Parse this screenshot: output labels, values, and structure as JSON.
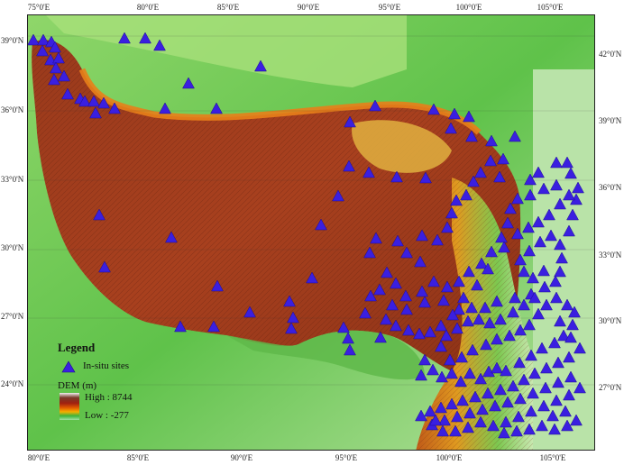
{
  "map": {
    "longitude_ticks": [
      "75°0'E",
      "80°0'E",
      "85°0'E",
      "90°0'E",
      "95°0'E",
      "100°0'E",
      "105°0'E"
    ],
    "left_latitude_ticks": [
      "39°0'N",
      "36°0'N",
      "33°0'N",
      "30°0'N",
      "27°0'N",
      "24°0'N"
    ],
    "right_latitude_ticks": [
      "42°0'N",
      "39°0'N",
      "36°0'N",
      "33°0'N",
      "30°0'N",
      "27°0'N"
    ],
    "bottom_longitude_ticks": [
      "80°0'E",
      "85°0'E",
      "90°0'E",
      "95°0'E",
      "100°0'E",
      "105°0'E"
    ],
    "site_color": "#3a1fe0"
  },
  "legend": {
    "title": "Legend",
    "site_label": "In-situ sites",
    "dem_title": "DEM (m)",
    "high_label": "High : 8744",
    "low_label": "Low : -277",
    "ramp_colors": [
      "#f0f0f0",
      "#7a3a2a",
      "#a02010",
      "#e05a00",
      "#f5b000",
      "#3cb43c",
      "#9ee0a0"
    ]
  }
}
